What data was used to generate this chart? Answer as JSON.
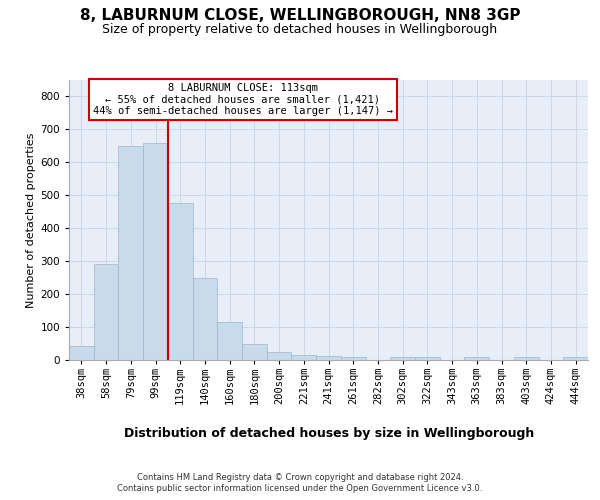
{
  "title1": "8, LABURNUM CLOSE, WELLINGBOROUGH, NN8 3GP",
  "title2": "Size of property relative to detached houses in Wellingborough",
  "xlabel": "Distribution of detached houses by size in Wellingborough",
  "ylabel": "Number of detached properties",
  "categories": [
    "38sqm",
    "58sqm",
    "79sqm",
    "99sqm",
    "119sqm",
    "140sqm",
    "160sqm",
    "180sqm",
    "200sqm",
    "221sqm",
    "241sqm",
    "261sqm",
    "282sqm",
    "302sqm",
    "322sqm",
    "343sqm",
    "363sqm",
    "383sqm",
    "403sqm",
    "424sqm",
    "444sqm"
  ],
  "values": [
    42,
    292,
    650,
    660,
    478,
    250,
    115,
    48,
    25,
    14,
    12,
    8,
    0,
    8,
    8,
    0,
    8,
    0,
    8,
    0,
    8
  ],
  "bar_color": "#c9daea",
  "bar_edge_color": "#9ab8cc",
  "vline_color": "#cc0000",
  "vline_x": 3.5,
  "annotation_text": "8 LABURNUM CLOSE: 113sqm\n← 55% of detached houses are smaller (1,421)\n44% of semi-detached houses are larger (1,147) →",
  "annotation_box_facecolor": "#ffffff",
  "annotation_box_edgecolor": "#cc0000",
  "ylim": [
    0,
    850
  ],
  "yticks": [
    0,
    100,
    200,
    300,
    400,
    500,
    600,
    700,
    800
  ],
  "grid_color": "#cdd6e6",
  "plot_bg_color": "#e8eef8",
  "footer_line1": "Contains HM Land Registry data © Crown copyright and database right 2024.",
  "footer_line2": "Contains public sector information licensed under the Open Government Licence v3.0.",
  "title1_fontsize": 11,
  "title2_fontsize": 9,
  "xlabel_fontsize": 9,
  "ylabel_fontsize": 8,
  "tick_fontsize": 7.5,
  "ann_fontsize": 7.5,
  "footer_fontsize": 6
}
